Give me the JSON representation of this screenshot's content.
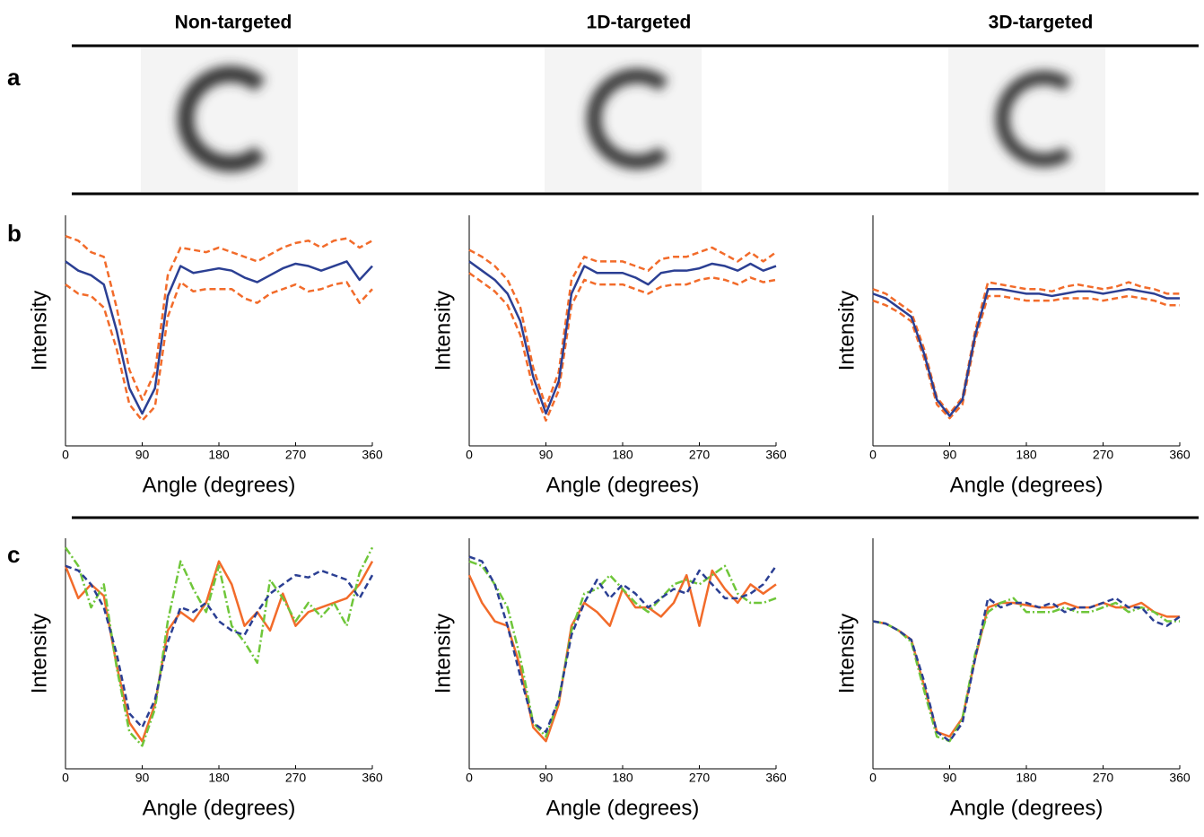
{
  "figure": {
    "column_titles": [
      "Non-targeted",
      "1D-targeted",
      "3D-targeted"
    ],
    "row_labels": [
      "a",
      "b",
      "c"
    ]
  },
  "chart_data": [
    {
      "type": "line",
      "xlabel": "Angle (degrees)",
      "ylabel": "Intensity",
      "x": [
        0,
        15,
        30,
        45,
        60,
        75,
        90,
        105,
        120,
        135,
        150,
        165,
        180,
        195,
        210,
        225,
        240,
        255,
        270,
        285,
        300,
        315,
        330,
        345,
        360
      ],
      "xlim": [
        0,
        360
      ],
      "xticks": [
        0,
        90,
        180,
        270,
        360
      ],
      "ylim": [
        0,
        100
      ],
      "series": [
        {
          "color": "#f26b2a",
          "dash": "dashed",
          "values": [
            91,
            89,
            84,
            82,
            60,
            33,
            20,
            32,
            74,
            86,
            85,
            84,
            86,
            84,
            82,
            80,
            83,
            86,
            88,
            89,
            86,
            89,
            90,
            86,
            89
          ]
        },
        {
          "color": "#f26b2a",
          "dash": "dashed",
          "values": [
            70,
            66,
            65,
            60,
            42,
            18,
            11,
            17,
            56,
            71,
            67,
            68,
            68,
            68,
            64,
            62,
            66,
            68,
            70,
            67,
            68,
            70,
            71,
            62,
            68
          ]
        },
        {
          "color": "#2b3f93",
          "dash": "solid",
          "values": [
            80,
            76,
            74,
            70,
            50,
            25,
            14,
            25,
            65,
            78,
            75,
            76,
            77,
            76,
            73,
            71,
            74,
            77,
            79,
            78,
            76,
            78,
            80,
            72,
            78
          ]
        }
      ]
    },
    {
      "type": "line",
      "xlabel": "Angle (degrees)",
      "ylabel": "Intensity",
      "x": [
        0,
        15,
        30,
        45,
        60,
        75,
        90,
        105,
        120,
        135,
        150,
        165,
        180,
        195,
        210,
        225,
        240,
        255,
        270,
        285,
        300,
        315,
        330,
        345,
        360
      ],
      "xlim": [
        0,
        360
      ],
      "xticks": [
        0,
        90,
        180,
        270,
        360
      ],
      "ylim": [
        0,
        100
      ],
      "series": [
        {
          "color": "#f26b2a",
          "dash": "dashed",
          "values": [
            85,
            82,
            78,
            72,
            60,
            34,
            17,
            32,
            72,
            82,
            80,
            80,
            80,
            78,
            76,
            81,
            82,
            82,
            84,
            86,
            83,
            80,
            84,
            80,
            84
          ]
        },
        {
          "color": "#f26b2a",
          "dash": "dashed",
          "values": [
            75,
            71,
            67,
            61,
            48,
            25,
            11,
            24,
            61,
            72,
            70,
            70,
            70,
            68,
            66,
            69,
            70,
            70,
            72,
            73,
            72,
            70,
            73,
            71,
            72
          ]
        },
        {
          "color": "#2b3f93",
          "dash": "solid",
          "values": [
            80,
            76,
            72,
            66,
            54,
            30,
            14,
            28,
            66,
            78,
            75,
            75,
            75,
            73,
            70,
            75,
            76,
            76,
            77,
            79,
            78,
            76,
            79,
            76,
            78
          ]
        }
      ]
    },
    {
      "type": "line",
      "xlabel": "Angle (degrees)",
      "ylabel": "Intensity",
      "x": [
        0,
        15,
        30,
        45,
        60,
        75,
        90,
        105,
        120,
        135,
        150,
        165,
        180,
        195,
        210,
        225,
        240,
        255,
        270,
        285,
        300,
        315,
        330,
        345,
        360
      ],
      "xlim": [
        0,
        360
      ],
      "xticks": [
        0,
        90,
        180,
        270,
        360
      ],
      "ylim": [
        0,
        100
      ],
      "series": [
        {
          "color": "#f26b2a",
          "dash": "dashed",
          "values": [
            68,
            66,
            62,
            58,
            42,
            21,
            14,
            21,
            50,
            71,
            70,
            69,
            68,
            68,
            67,
            69,
            70,
            69,
            68,
            69,
            71,
            69,
            68,
            66,
            66
          ]
        },
        {
          "color": "#f26b2a",
          "dash": "dashed",
          "values": [
            63,
            61,
            58,
            54,
            38,
            18,
            12,
            18,
            46,
            65,
            65,
            64,
            63,
            63,
            63,
            64,
            64,
            64,
            63,
            64,
            65,
            64,
            63,
            61,
            61
          ]
        },
        {
          "color": "#2b3f93",
          "dash": "solid",
          "values": [
            66,
            64,
            60,
            56,
            40,
            20,
            13,
            20,
            48,
            68,
            68,
            67,
            66,
            66,
            65,
            66,
            67,
            67,
            66,
            67,
            68,
            67,
            66,
            64,
            64
          ]
        }
      ]
    },
    {
      "type": "line",
      "xlabel": "Angle (degrees)",
      "ylabel": "Intensity",
      "x": [
        0,
        15,
        30,
        45,
        60,
        75,
        90,
        105,
        120,
        135,
        150,
        165,
        180,
        195,
        210,
        225,
        240,
        255,
        270,
        285,
        300,
        315,
        330,
        345,
        360
      ],
      "xlim": [
        0,
        360
      ],
      "xticks": [
        0,
        90,
        180,
        270,
        360
      ],
      "ylim": [
        0,
        100
      ],
      "series": [
        {
          "color": "#f26b2a",
          "dash": "solid",
          "values": [
            88,
            74,
            80,
            75,
            45,
            20,
            12,
            28,
            60,
            68,
            64,
            72,
            90,
            80,
            62,
            68,
            60,
            76,
            62,
            68,
            70,
            72,
            74,
            80,
            90
          ]
        },
        {
          "color": "#6fc63a",
          "dash": "dashdot",
          "values": [
            96,
            88,
            70,
            80,
            44,
            16,
            10,
            26,
            64,
            90,
            78,
            68,
            88,
            62,
            55,
            46,
            82,
            74,
            64,
            72,
            66,
            72,
            62,
            85,
            96
          ]
        },
        {
          "color": "#2b3f93",
          "dash": "dashed",
          "values": [
            88,
            86,
            80,
            70,
            50,
            24,
            18,
            30,
            55,
            70,
            68,
            72,
            64,
            60,
            58,
            68,
            76,
            80,
            84,
            83,
            86,
            84,
            82,
            74,
            84
          ]
        }
      ]
    },
    {
      "type": "line",
      "xlabel": "Angle (degrees)",
      "ylabel": "Intensity",
      "x": [
        0,
        15,
        30,
        45,
        60,
        75,
        90,
        105,
        120,
        135,
        150,
        165,
        180,
        195,
        210,
        225,
        240,
        255,
        270,
        285,
        300,
        315,
        330,
        345,
        360
      ],
      "xlim": [
        0,
        360
      ],
      "xticks": [
        0,
        90,
        180,
        270,
        360
      ],
      "ylim": [
        0,
        100
      ],
      "series": [
        {
          "color": "#f26b2a",
          "dash": "solid",
          "values": [
            84,
            72,
            64,
            62,
            44,
            18,
            12,
            28,
            62,
            72,
            68,
            62,
            78,
            70,
            70,
            66,
            72,
            84,
            62,
            86,
            78,
            72,
            80,
            76,
            80
          ]
        },
        {
          "color": "#6fc63a",
          "dash": "dashdot",
          "values": [
            90,
            88,
            80,
            70,
            48,
            20,
            14,
            30,
            60,
            76,
            78,
            84,
            78,
            72,
            68,
            74,
            80,
            82,
            80,
            84,
            88,
            76,
            72,
            72,
            74
          ]
        },
        {
          "color": "#2b3f93",
          "dash": "dashed",
          "values": [
            92,
            90,
            80,
            62,
            40,
            20,
            16,
            30,
            58,
            72,
            82,
            74,
            80,
            76,
            70,
            74,
            78,
            76,
            86,
            80,
            74,
            74,
            76,
            80,
            88
          ]
        }
      ]
    },
    {
      "type": "line",
      "xlabel": "Angle (degrees)",
      "ylabel": "Intensity",
      "x": [
        0,
        15,
        30,
        45,
        60,
        75,
        90,
        105,
        120,
        135,
        150,
        165,
        180,
        195,
        210,
        225,
        240,
        255,
        270,
        285,
        300,
        315,
        330,
        345,
        360
      ],
      "xlim": [
        0,
        360
      ],
      "xticks": [
        0,
        90,
        180,
        270,
        360
      ],
      "ylim": [
        0,
        100
      ],
      "series": [
        {
          "color": "#f26b2a",
          "dash": "solid",
          "values": [
            64,
            63,
            60,
            56,
            36,
            16,
            14,
            22,
            48,
            70,
            72,
            72,
            71,
            70,
            70,
            72,
            70,
            70,
            72,
            70,
            70,
            72,
            68,
            66,
            66
          ]
        },
        {
          "color": "#6fc63a",
          "dash": "dashdot",
          "values": [
            64,
            63,
            60,
            55,
            34,
            14,
            12,
            22,
            50,
            68,
            72,
            74,
            68,
            68,
            68,
            70,
            68,
            68,
            70,
            72,
            68,
            70,
            68,
            64,
            64
          ]
        },
        {
          "color": "#2b3f93",
          "dash": "dashed",
          "values": [
            64,
            63,
            60,
            56,
            38,
            16,
            12,
            20,
            48,
            74,
            70,
            72,
            72,
            70,
            72,
            68,
            70,
            70,
            72,
            74,
            70,
            70,
            64,
            62,
            66
          ]
        }
      ]
    }
  ]
}
